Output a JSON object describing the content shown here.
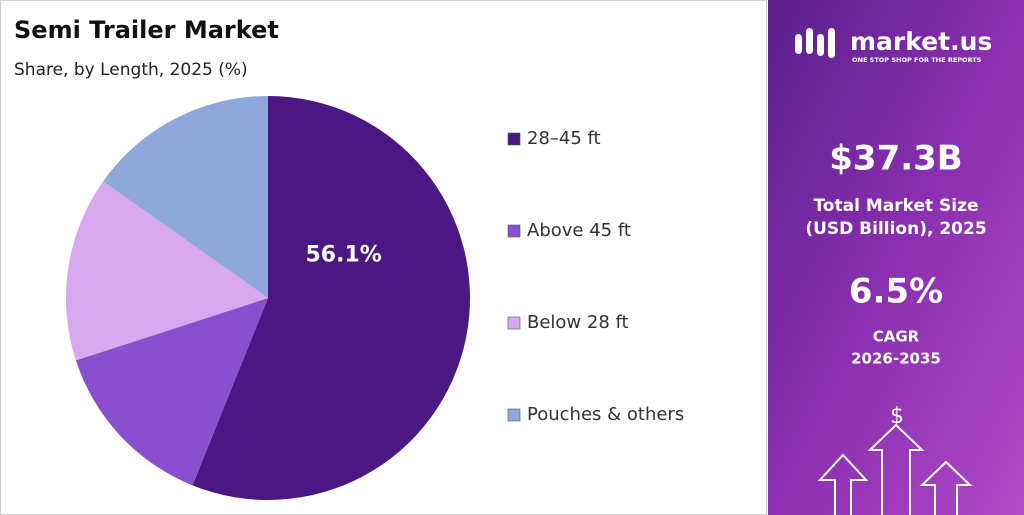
{
  "chart_data": {
    "type": "pie",
    "title": "Semi Trailer Market",
    "subtitle": "Share, by Length, 2025 (%)",
    "categories": [
      "28–45 ft",
      "Above 45 ft",
      "Below 28 ft",
      "Pouches & others"
    ],
    "values": [
      56.1,
      13.9,
      14.8,
      15.2
    ],
    "value_labels": [
      "56.1%",
      null,
      null,
      null
    ],
    "colors": [
      "#4b1782",
      "#8a4fcf",
      "#d8a9f0",
      "#8fa8dc"
    ]
  },
  "side_panel": {
    "brand": "market.us",
    "tagline": "ONE STOP SHOP FOR THE REPORTS",
    "market_size": "$37.3B",
    "market_size_label_1": "Total Market Size",
    "market_size_label_2": "(USD Billion), 2025",
    "cagr": "6.5%",
    "cagr_label_1": "CAGR",
    "cagr_label_2": "2026-2035"
  }
}
